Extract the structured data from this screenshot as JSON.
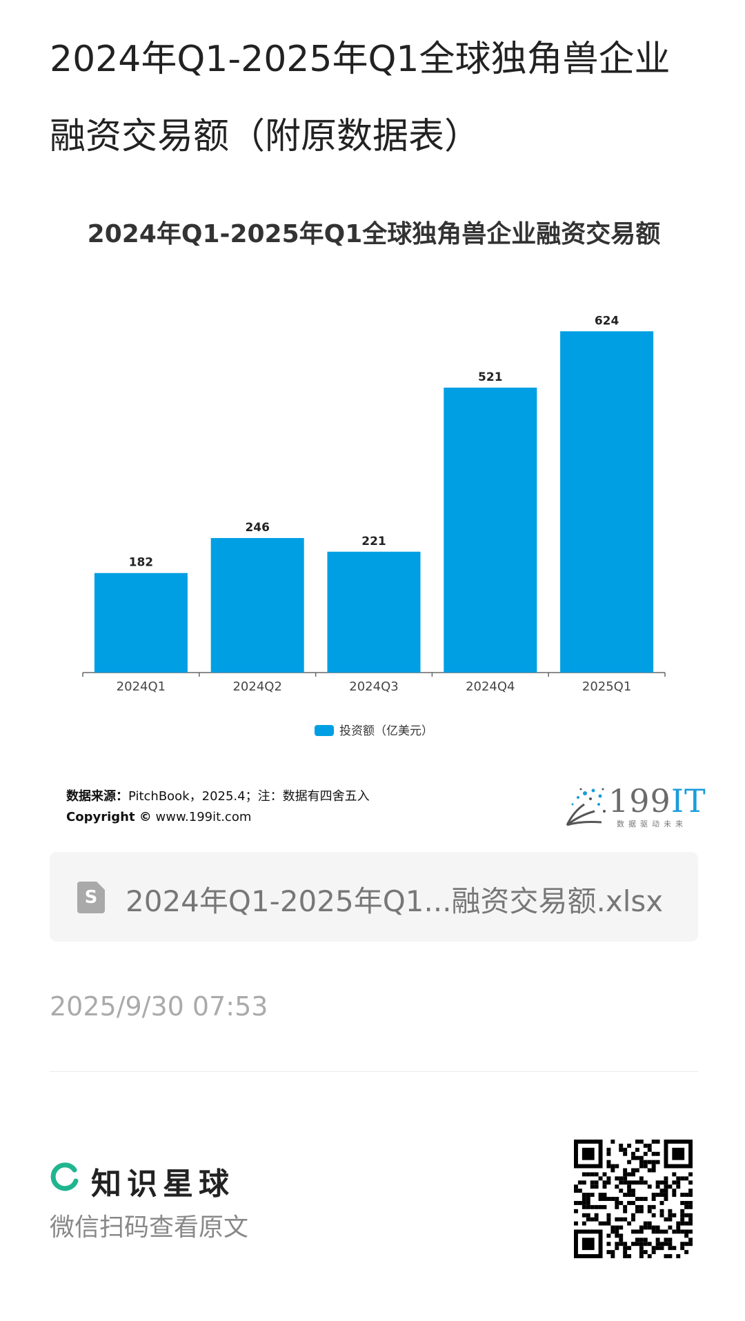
{
  "page": {
    "title": "2024年Q1-2025年Q1全球独角兽企业融资交易额（附原数据表）"
  },
  "chart_data": {
    "type": "bar",
    "title": "2024年Q1-2025年Q1全球独角兽企业融资交易额",
    "categories": [
      "2024Q1",
      "2024Q2",
      "2024Q3",
      "2024Q4",
      "2025Q1"
    ],
    "series": [
      {
        "name": "投资额（亿美元）",
        "values": [
          182,
          246,
          221,
          521,
          624
        ],
        "color": "#009fe3"
      }
    ],
    "xlabel": "",
    "ylabel": "",
    "ylim": [
      0,
      700
    ],
    "grid": false,
    "legend": "bottom-center",
    "data_labels": true
  },
  "source": {
    "label": "数据来源：",
    "text": "PitchBook，2025.4；注：数据有四舍五入",
    "copyright_label": "Copyright ©",
    "copyright_url": "www.199it.com"
  },
  "logo": {
    "text_main": "199",
    "text_accent": "IT",
    "tagline": "数据驱动未来"
  },
  "attachment": {
    "icon": "spreadsheet-icon",
    "icon_letter": "S",
    "filename": "2024年Q1-2025年Q1...融资交易额.xlsx"
  },
  "meta": {
    "timestamp": "2025/9/30 07:53"
  },
  "footer": {
    "brand_name": "知识星球",
    "brand_sub": "微信扫码查看原文",
    "brand_color": "#1fb58f",
    "qr_icon": "qr-code-icon"
  }
}
